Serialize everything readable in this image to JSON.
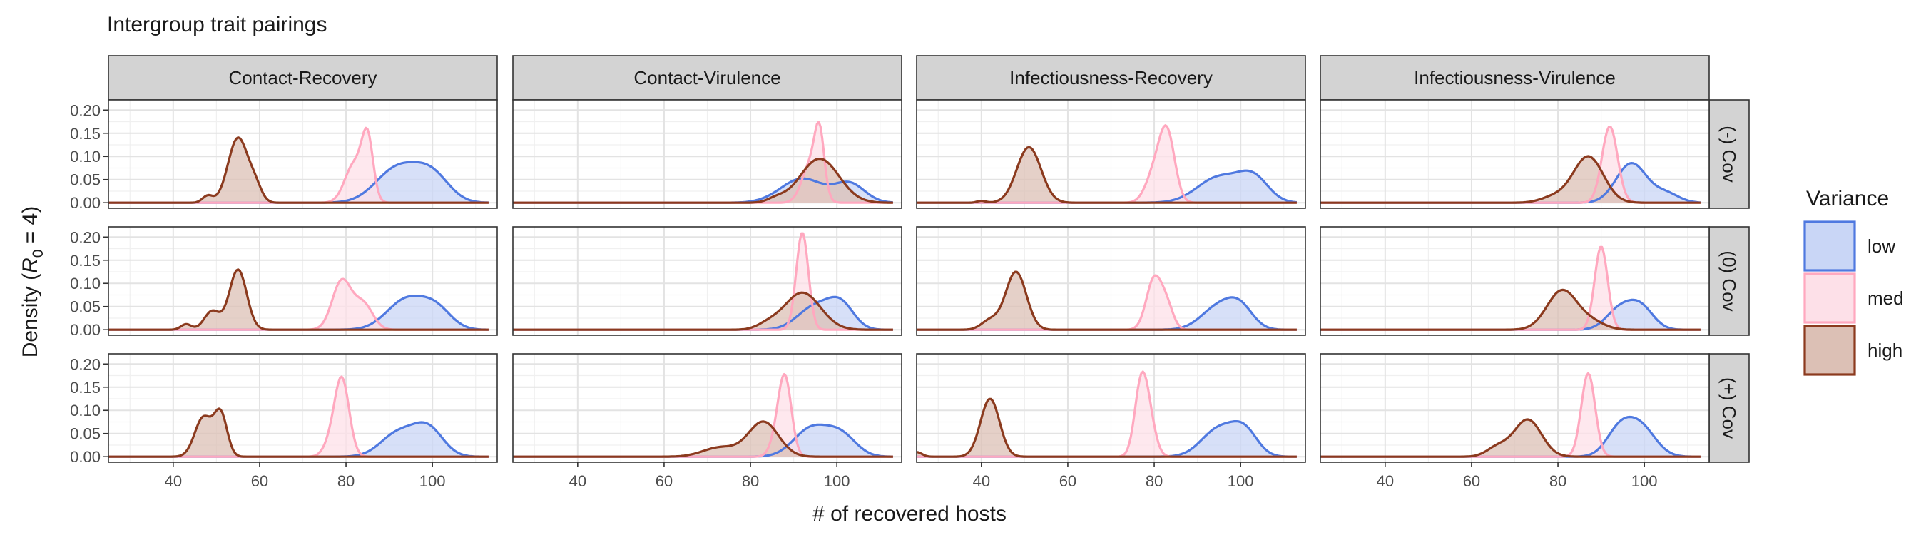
{
  "chart_data": {
    "type": "area",
    "title": "Intergroup trait pairings",
    "xlabel": "# of recovered hosts",
    "ylabel_main": "Density (",
    "ylabel_R": "R",
    "ylabel_sub": "0",
    "ylabel_tail": " = 4)",
    "xlim": [
      25,
      115
    ],
    "ylim": [
      -0.012,
      0.222
    ],
    "x_ticks": [
      40,
      60,
      80,
      100
    ],
    "x_tick_labels": [
      "40",
      "60",
      "80",
      "100"
    ],
    "y_ticks": [
      0.0,
      0.05,
      0.1,
      0.15,
      0.2
    ],
    "y_tick_labels": [
      "0.00",
      "0.05",
      "0.10",
      "0.15",
      "0.20"
    ],
    "grid": true,
    "facet_columns": [
      "Contact-Recovery",
      "Contact-Virulence",
      "Infectiousness-Recovery",
      "Infectiousness-Virulence"
    ],
    "facet_rows": [
      "(-) Cov",
      "(0) Cov",
      "(+) Cov"
    ],
    "x_range": [
      25,
      113
    ],
    "legend": {
      "title": "Variance",
      "position": "right",
      "items": [
        {
          "key": "low",
          "label": "low",
          "line": "#4f79e0",
          "fill": "#c9d6f6"
        },
        {
          "key": "med",
          "label": "med",
          "line": "#ffa8bf",
          "fill": "#fde0e8"
        },
        {
          "key": "high",
          "label": "high",
          "line": "#8b3a1e",
          "fill": "#dcc0b5"
        }
      ]
    },
    "panels": [
      [
        {
          "low": [
            [
              92,
              0.075,
              5
            ],
            [
              100,
              0.055,
              4
            ]
          ],
          "med": [
            [
              82,
              0.085,
              2.2
            ],
            [
              85,
              0.125,
              1.3
            ]
          ],
          "high": [
            [
              55,
              0.14,
              2.3
            ],
            [
              59,
              0.03,
              1.5
            ],
            [
              48,
              0.015,
              1.2
            ]
          ]
        },
        {
          "low": [
            [
              92,
              0.052,
              5
            ],
            [
              103,
              0.04,
              3.5
            ]
          ],
          "med": [
            [
              94,
              0.085,
              2
            ],
            [
              96,
              0.12,
              1.1
            ]
          ],
          "high": [
            [
              96,
              0.095,
              4.5
            ],
            [
              86,
              0.008,
              2
            ]
          ]
        },
        {
          "low": [
            [
              95,
              0.055,
              5
            ],
            [
              103,
              0.05,
              3.5
            ]
          ],
          "med": [
            [
              80,
              0.06,
              2
            ],
            [
              83,
              0.145,
              1.8
            ]
          ],
          "high": [
            [
              51,
              0.12,
              2.8
            ],
            [
              40,
              0.004,
              1
            ]
          ]
        },
        {
          "low": [
            [
              97,
              0.085,
              3.5
            ],
            [
              105,
              0.02,
              3
            ]
          ],
          "med": [
            [
              92,
              0.165,
              1.8
            ]
          ],
          "high": [
            [
              87,
              0.1,
              3.5
            ],
            [
              79,
              0.012,
              3
            ]
          ]
        }
      ],
      [
        {
          "low": [
            [
              94,
              0.065,
              4.5
            ],
            [
              101,
              0.04,
              3.5
            ]
          ],
          "med": [
            [
              79,
              0.105,
              2.2
            ],
            [
              84,
              0.055,
              2.2
            ]
          ],
          "high": [
            [
              55,
              0.13,
              2
            ],
            [
              49,
              0.04,
              1.8
            ],
            [
              43,
              0.012,
              1.2
            ]
          ]
        },
        {
          "low": [
            [
              95,
              0.05,
              4
            ],
            [
              101,
              0.05,
              3
            ]
          ],
          "med": [
            [
              92,
              0.21,
              1.4
            ]
          ],
          "high": [
            [
              92,
              0.08,
              4.2
            ],
            [
              84,
              0.01,
              2.5
            ]
          ]
        },
        {
          "low": [
            [
              95,
              0.05,
              4
            ],
            [
              100,
              0.04,
              3
            ]
          ],
          "med": [
            [
              80,
              0.11,
              1.8
            ],
            [
              83,
              0.045,
              1.5
            ]
          ],
          "high": [
            [
              48,
              0.125,
              2.4
            ],
            [
              42,
              0.02,
              2
            ]
          ]
        },
        {
          "low": [
            [
              94,
              0.04,
              3
            ],
            [
              99,
              0.05,
              3
            ]
          ],
          "med": [
            [
              90,
              0.18,
              1.5
            ]
          ],
          "high": [
            [
              81,
              0.085,
              3.5
            ],
            [
              88,
              0.015,
              3
            ]
          ]
        }
      ],
      [
        {
          "low": [
            [
              92,
              0.05,
              4
            ],
            [
              99,
              0.06,
              3.5
            ]
          ],
          "med": [
            [
              79,
              0.17,
              1.7
            ],
            [
              76,
              0.02,
              1.5
            ]
          ],
          "high": [
            [
              47,
              0.085,
              2
            ],
            [
              51,
              0.09,
              1.5
            ]
          ]
        },
        {
          "low": [
            [
              94,
              0.06,
              4
            ],
            [
              101,
              0.045,
              3.5
            ]
          ],
          "med": [
            [
              88,
              0.165,
              1.5
            ],
            [
              86,
              0.03,
              1.5
            ]
          ],
          "high": [
            [
              83,
              0.075,
              3.5
            ],
            [
              73,
              0.02,
              4
            ]
          ]
        },
        {
          "low": [
            [
              95,
              0.06,
              4
            ],
            [
              101,
              0.05,
              3
            ]
          ],
          "med": [
            [
              77,
              0.155,
              1.5
            ],
            [
              79,
              0.06,
              1.5
            ]
          ],
          "high": [
            [
              42,
              0.125,
              2.2
            ],
            [
              25,
              0.01,
              1.2
            ]
          ]
        },
        {
          "low": [
            [
              94,
              0.05,
              3
            ],
            [
              99,
              0.065,
              3.5
            ]
          ],
          "med": [
            [
              87,
              0.18,
              1.6
            ]
          ],
          "high": [
            [
              73,
              0.08,
              3.2
            ],
            [
              66,
              0.02,
              2.5
            ]
          ]
        }
      ]
    ]
  }
}
